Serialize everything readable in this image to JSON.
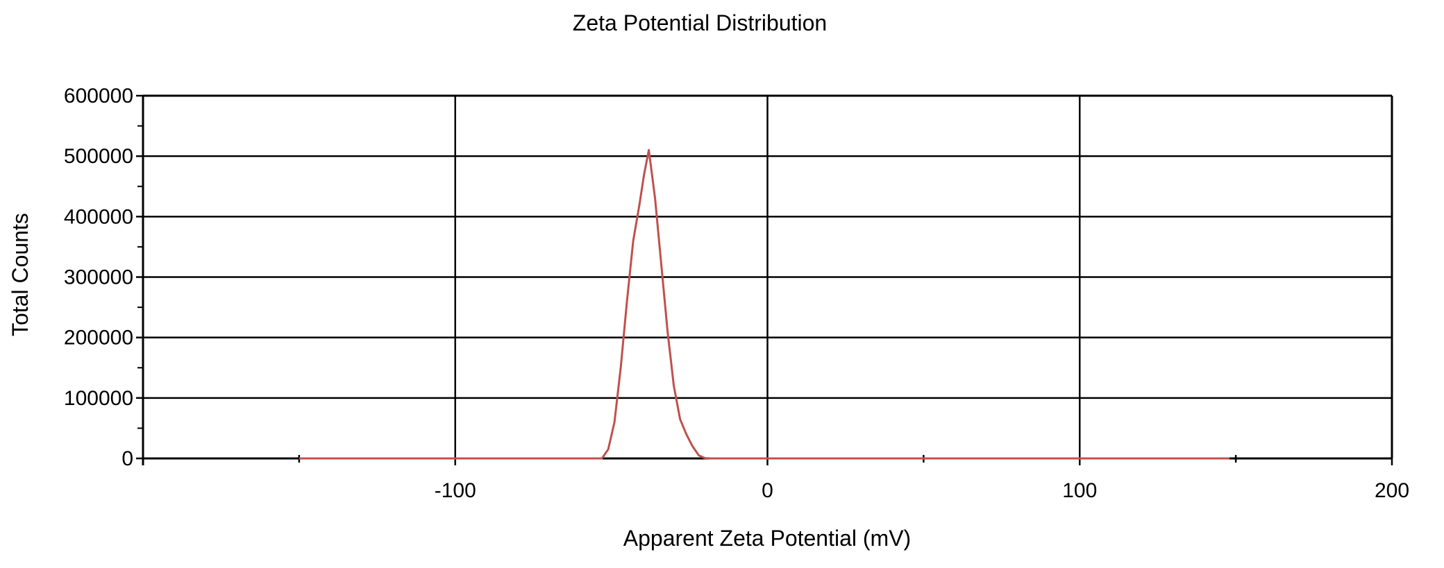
{
  "chart_data": {
    "type": "line",
    "title": "Zeta Potential Distribution",
    "xlabel": "Apparent Zeta Potential (mV)",
    "ylabel": "Total Counts",
    "xlim": [
      -200,
      200
    ],
    "ylim": [
      0,
      600000
    ],
    "x_ticks": [
      -100,
      0,
      100,
      200
    ],
    "y_ticks": [
      0,
      100000,
      200000,
      300000,
      400000,
      500000,
      600000
    ],
    "x_tick_labels": [
      "-100",
      "0",
      "100",
      "200"
    ],
    "y_tick_labels": [
      "0",
      "100000",
      "200000",
      "300000",
      "400000",
      "500000",
      "600000"
    ],
    "x_minor_ticks": [
      -150,
      50,
      150
    ],
    "y_minor_ticks": [
      50000,
      150000,
      250000,
      350000,
      450000,
      550000
    ],
    "grid": true,
    "legend": "none",
    "series": [
      {
        "color": "#c0504d",
        "x": [
          -150,
          -60,
          -53,
          -51,
          -49,
          -47,
          -45,
          -43,
          -41,
          -39.5,
          -38,
          -36,
          -34,
          -32,
          -30,
          -28,
          -26,
          -24,
          -22,
          -20,
          -18,
          0,
          50,
          100,
          148
        ],
        "y": [
          0,
          0,
          0,
          15000,
          60000,
          150000,
          260000,
          360000,
          420000,
          470000,
          510000,
          430000,
          320000,
          210000,
          120000,
          65000,
          40000,
          20000,
          5000,
          500,
          0,
          0,
          0,
          0,
          0
        ]
      }
    ]
  }
}
